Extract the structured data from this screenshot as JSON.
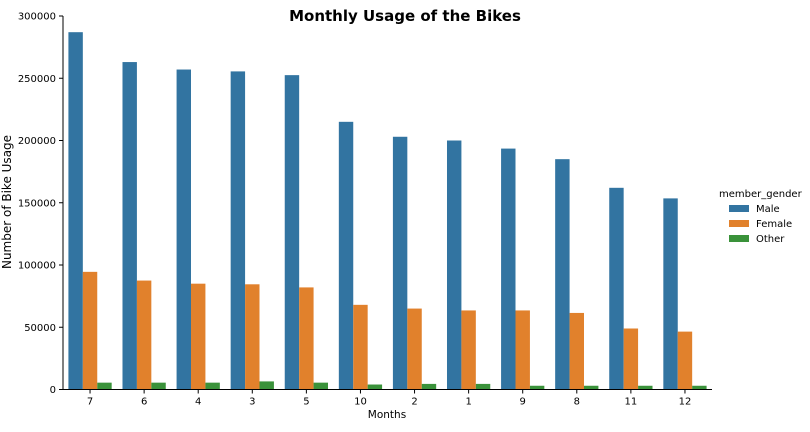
{
  "chart_data": {
    "type": "bar",
    "title": "Monthly Usage of the Bikes",
    "xlabel": "Months",
    "ylabel": "Number of Bike Usage",
    "categories": [
      "7",
      "6",
      "4",
      "3",
      "5",
      "10",
      "2",
      "1",
      "9",
      "8",
      "11",
      "12"
    ],
    "ylim": [
      0,
      300000
    ],
    "yticks": [
      0,
      50000,
      100000,
      150000,
      200000,
      250000,
      300000
    ],
    "ytick_labels": [
      "0",
      "50000",
      "100000",
      "150000",
      "200000",
      "250000",
      "300000"
    ],
    "legend": {
      "title": "member_gender",
      "placement": "right"
    },
    "series": [
      {
        "name": "Male",
        "color": "#3274a1",
        "values": [
          287000,
          263000,
          257000,
          255500,
          252500,
          215000,
          203000,
          200000,
          193500,
          185000,
          162000,
          153500
        ]
      },
      {
        "name": "Female",
        "color": "#e1812c",
        "values": [
          94500,
          87500,
          85000,
          84500,
          82000,
          68000,
          65000,
          63500,
          63500,
          61500,
          49000,
          46500
        ]
      },
      {
        "name": "Other",
        "color": "#3a923a",
        "values": [
          5500,
          5500,
          5500,
          6500,
          5500,
          4000,
          4500,
          4500,
          3000,
          3000,
          3000,
          3000
        ]
      }
    ]
  }
}
